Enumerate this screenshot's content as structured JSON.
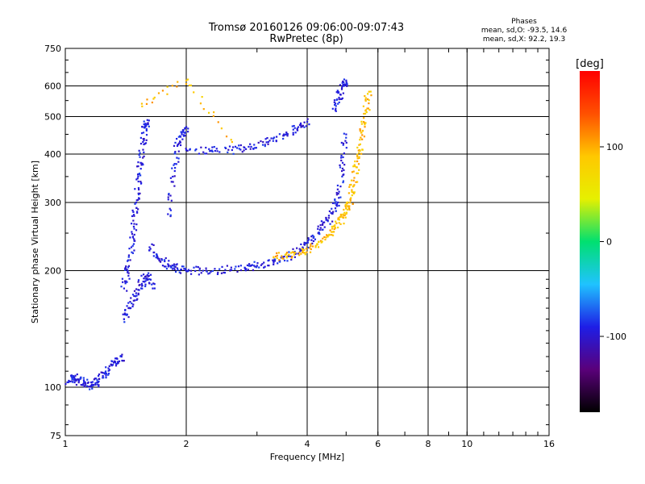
{
  "title": "Tromsø 20160126 09:06:00-09:07:43",
  "subtitle": "RwPretec (8p)",
  "stats": {
    "heading": "Phases",
    "line1": "mean, sd,O: -93.5, 14.6",
    "line2": "mean, sd,X:  92.2, 19.3"
  },
  "chart_data": {
    "type": "scatter",
    "title": "Tromsø 20160126 09:06:00-09:07:43",
    "subtitle": "RwPretec (8p)",
    "xlabel": "Frequency [MHz]",
    "ylabel": "Stationary phase Virtual Height [km]",
    "x_scale": "log",
    "y_scale": "log",
    "xlim": [
      1,
      16
    ],
    "ylim": [
      75,
      750
    ],
    "x_ticks": [
      1,
      2,
      4,
      6,
      8,
      10,
      16
    ],
    "y_ticks": [
      75,
      100,
      200,
      300,
      400,
      500,
      600,
      750
    ],
    "grid": true,
    "colorbar": {
      "label": "[deg]",
      "range": [
        -180,
        180
      ],
      "ticks": [
        100,
        0,
        -100
      ],
      "colors": [
        "#000000",
        "#5a007a",
        "#1e1ee6",
        "#1fc3ff",
        "#00e070",
        "#e6f000",
        "#ffc800",
        "#ff5000",
        "#ff0000"
      ]
    },
    "series": [
      {
        "polarization": "O",
        "phase_deg": -93.5,
        "phase_sd_deg": 14.6,
        "traces": [
          {
            "x": [
              1.02,
              1.05,
              1.08,
              1.12,
              1.16,
              1.2,
              1.24,
              1.28,
              1.33,
              1.38
            ],
            "y": [
              104,
              106,
              104,
              103,
              101,
              103,
              107,
              112,
              116,
              120
            ]
          },
          {
            "x": [
              1.4,
              1.43,
              1.46,
              1.48,
              1.5,
              1.52,
              1.54,
              1.56,
              1.58,
              1.6
            ],
            "y": [
              180,
              200,
              230,
              260,
              300,
              340,
              380,
              430,
              470,
              490
            ]
          },
          {
            "x": [
              1.4,
              1.45,
              1.5,
              1.55,
              1.6,
              1.65
            ],
            "y": [
              150,
              160,
              175,
              185,
              195,
              180
            ]
          },
          {
            "x": [
              1.62,
              1.7,
              1.8,
              1.9,
              2.0,
              2.2,
              2.5,
              2.8,
              3.0,
              3.3,
              3.6,
              3.9,
              4.1
            ],
            "y": [
              230,
              215,
              208,
              203,
              200,
              200,
              201,
              203,
              206,
              210,
              218,
              228,
              240
            ]
          },
          {
            "x": [
              1.8,
              1.85,
              1.9,
              1.95,
              2.0
            ],
            "y": [
              280,
              350,
              420,
              450,
              470
            ]
          },
          {
            "x": [
              2.0,
              2.3,
              2.6,
              2.9,
              3.2,
              3.5,
              3.8,
              4.0
            ],
            "y": [
              410,
              408,
              410,
              418,
              430,
              450,
              470,
              485
            ]
          },
          {
            "x": [
              4.1,
              4.3,
              4.5,
              4.7,
              4.8,
              4.9,
              5.0
            ],
            "y": [
              240,
              255,
              270,
              290,
              320,
              380,
              450
            ]
          },
          {
            "x": [
              4.7,
              4.8,
              4.9,
              5.0
            ],
            "y": [
              520,
              560,
              600,
              620
            ]
          }
        ]
      },
      {
        "polarization": "X",
        "phase_deg": 92.2,
        "phase_sd_deg": 19.3,
        "traces": [
          {
            "x": [
              3.3,
              3.6,
              3.9,
              4.2,
              4.5,
              4.7,
              4.9,
              5.0,
              5.1
            ],
            "y": [
              217,
              220,
              225,
              232,
              245,
              258,
              275,
              290,
              300
            ]
          },
          {
            "x": [
              5.1,
              5.2,
              5.3,
              5.4,
              5.5,
              5.6,
              5.7
            ],
            "y": [
              300,
              330,
              370,
              410,
              460,
              520,
              580
            ]
          },
          {
            "x": [
              1.55,
              2.0,
              2.6
            ],
            "y": [
              540,
              620,
              430
            ]
          }
        ]
      }
    ]
  }
}
